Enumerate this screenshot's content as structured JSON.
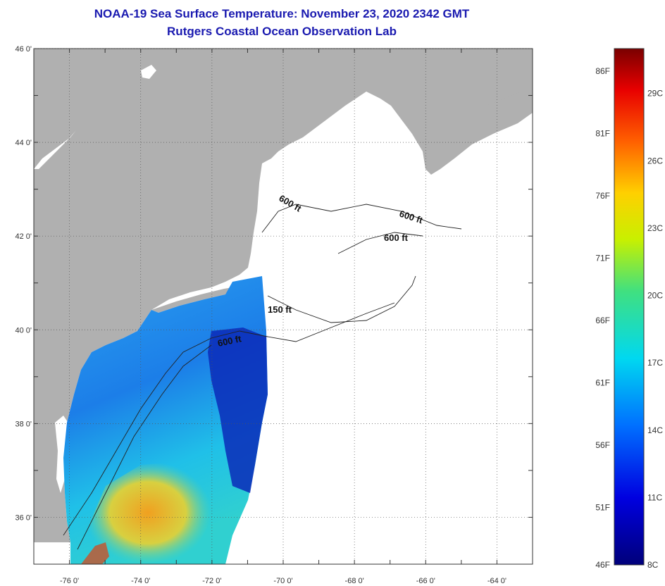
{
  "title": "NOAA-19 Sea Surface Temperature:  November 23, 2020 2342 GMT",
  "subtitle": "Rutgers Coastal Ocean Observation Lab",
  "colors": {
    "land": "#b0b0b0",
    "ocean_no_data": "#ffffff",
    "title": "#1a1ab0"
  },
  "map": {
    "lon_range": [
      -77,
      -63
    ],
    "lat_range": [
      35,
      46
    ],
    "lat_labels": [
      "46 0'",
      "44 0'",
      "42 0'",
      "40 0'",
      "38 0'",
      "36 0'"
    ],
    "lat_values": [
      46,
      44,
      42,
      40,
      38,
      36
    ],
    "lon_labels": [
      "-76 0'",
      "-74 0'",
      "-72 0'",
      "-70 0'",
      "-68 0'",
      "-66 0'",
      "-64 0'"
    ],
    "lon_values": [
      -76,
      -74,
      -72,
      -70,
      -68,
      -66,
      -64
    ],
    "grid": "dotted",
    "contours": [
      {
        "label": "600 ft"
      },
      {
        "label": "600 ft"
      },
      {
        "label": "600 ft"
      },
      {
        "label": "150 ft"
      },
      {
        "label": "600 ft"
      }
    ]
  },
  "colorbar": {
    "orientation": "vertical",
    "min_c": 8,
    "max_c": 31,
    "f_labels": [
      "86F",
      "81F",
      "76F",
      "71F",
      "66F",
      "61F",
      "56F",
      "51F",
      "46F"
    ],
    "f_values": [
      86,
      81,
      76,
      71,
      66,
      61,
      56,
      51,
      46
    ],
    "c_labels": [
      "29C",
      "26C",
      "23C",
      "20C",
      "17C",
      "14C",
      "11C",
      "8C"
    ],
    "c_values": [
      29,
      26,
      23,
      20,
      17,
      14,
      11,
      8
    ]
  }
}
